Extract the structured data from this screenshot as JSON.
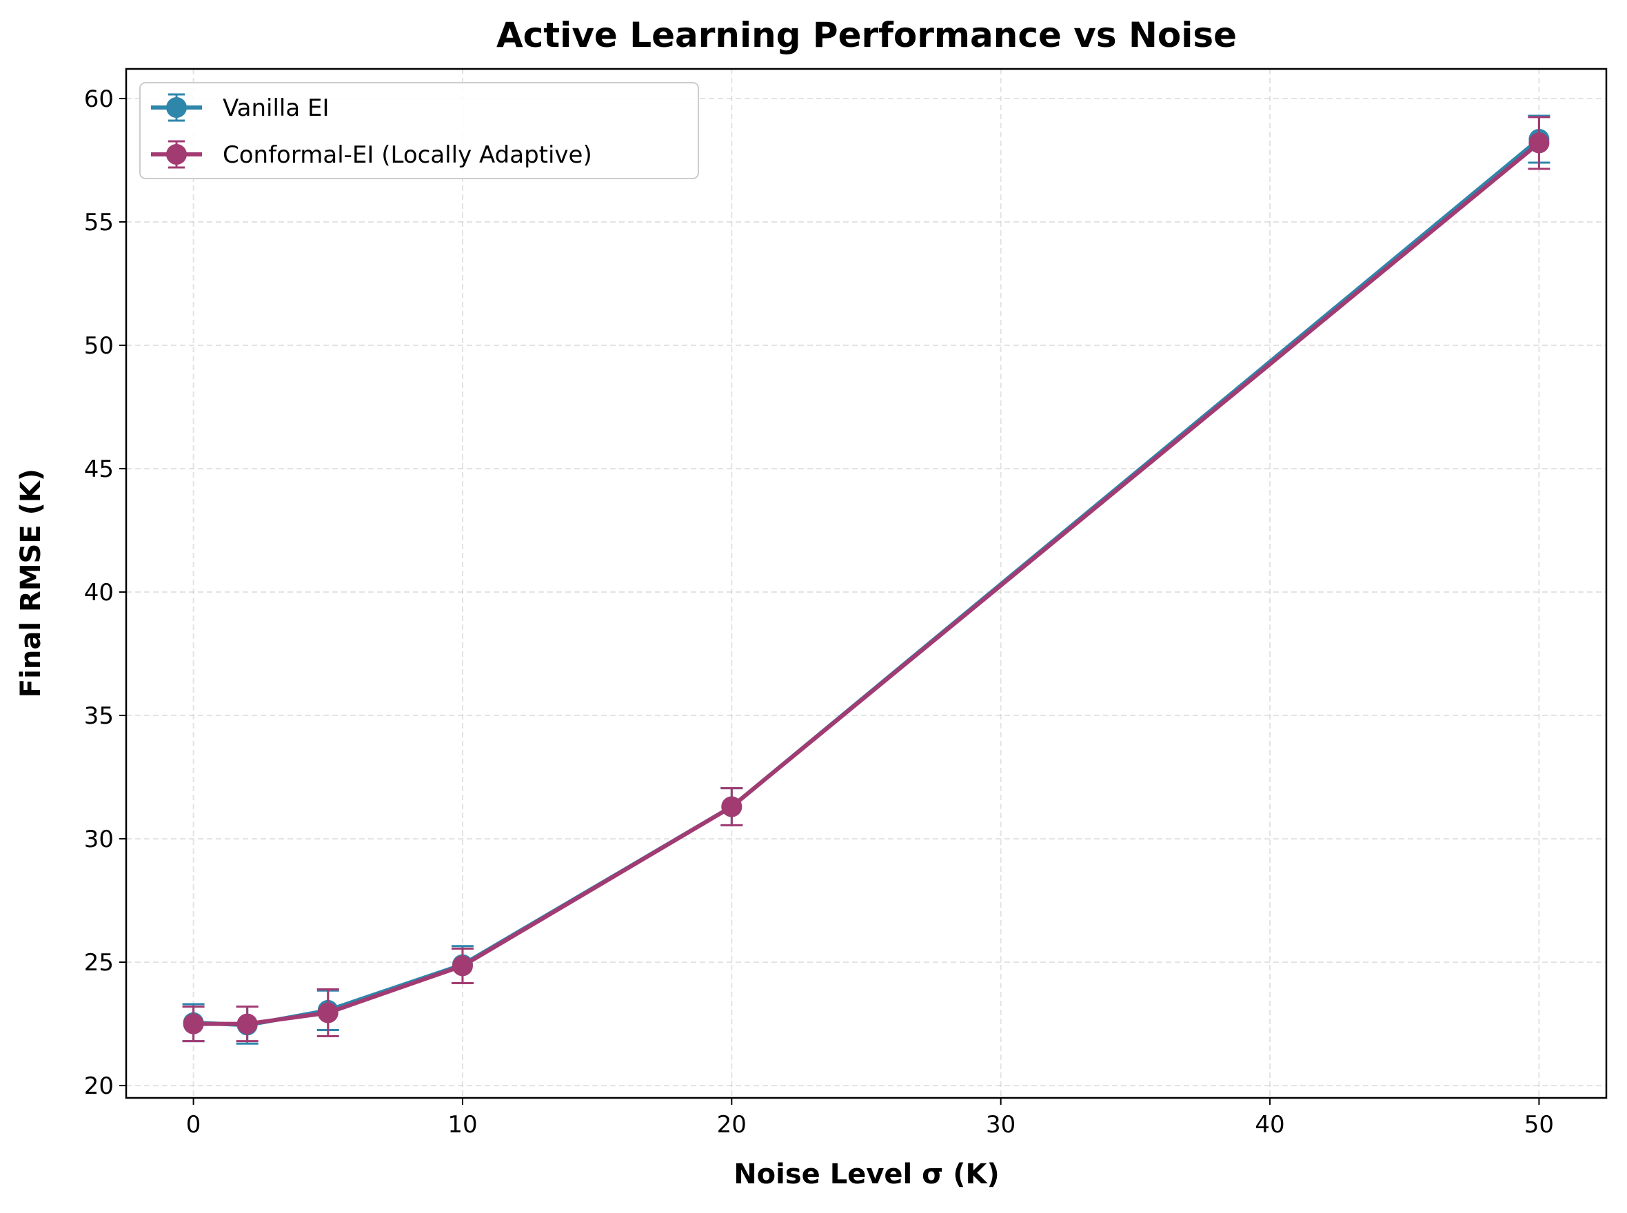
{
  "chart_data": {
    "type": "line",
    "title": "Active Learning Performance vs Noise",
    "xlabel": "Noise Level σ (K)",
    "ylabel": "Final RMSE (K)",
    "xlim": [
      -2.5,
      52.5
    ],
    "ylim": [
      19.5,
      61.2
    ],
    "xticks": [
      0,
      10,
      20,
      30,
      40,
      50
    ],
    "yticks": [
      20,
      25,
      30,
      35,
      40,
      45,
      50,
      55,
      60
    ],
    "grid": true,
    "legend_position": "top-left",
    "x": [
      0,
      2,
      5,
      10,
      20,
      50
    ],
    "series": [
      {
        "name": "Vanilla EI",
        "color": "#2e86ab",
        "values": [
          22.55,
          22.45,
          23.05,
          24.9,
          31.3,
          58.35
        ],
        "errors": [
          0.75,
          0.75,
          0.8,
          0.75,
          0.75,
          0.95
        ]
      },
      {
        "name": "Conformal-EI (Locally Adaptive)",
        "color": "#a23b72",
        "values": [
          22.5,
          22.5,
          22.95,
          24.85,
          31.3,
          58.2
        ],
        "errors": [
          0.7,
          0.7,
          0.95,
          0.7,
          0.75,
          1.05
        ]
      }
    ]
  }
}
